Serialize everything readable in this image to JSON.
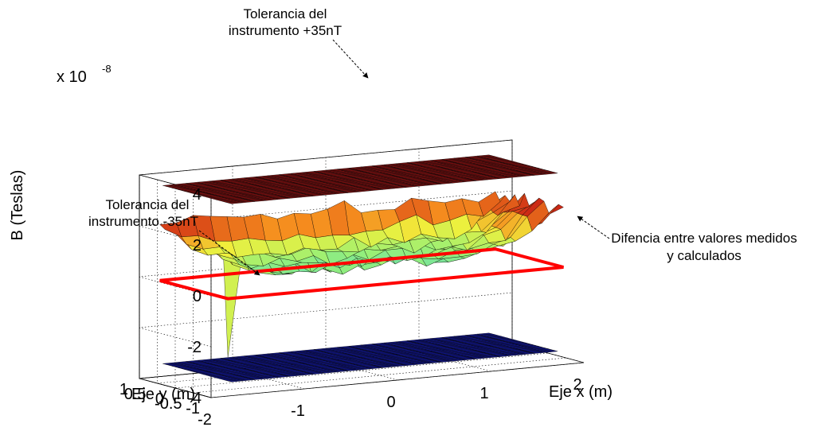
{
  "chart_data": {
    "type": "surface",
    "title": "",
    "ylabel_z": "B (Teslas)",
    "xlabel": "Eje x (m)",
    "ylabel": "Eje y (m)",
    "zscale_label": "x 10",
    "zscale_exp": "-8",
    "x_ticks": [
      "-2",
      "-1",
      "0",
      "1",
      "2"
    ],
    "y_ticks": [
      "-1",
      "-0.5",
      "0",
      "0.5",
      "1"
    ],
    "z_ticks": [
      "-4",
      "-2",
      "0",
      "2",
      "4"
    ],
    "xlim": [
      -2,
      2
    ],
    "ylim": [
      -1,
      1
    ],
    "zlim": [
      -4,
      4
    ],
    "zmult": 1e-08,
    "series": [
      {
        "name": "Tolerancia del instrumento +35nT",
        "value": 3.5,
        "color": "#7a1010"
      },
      {
        "name": "Tolerancia del instrumento -35nT",
        "value": -3.5,
        "color": "#101585"
      },
      {
        "name": "Difencia entre valores medidos y calculados",
        "center_value": 0.3,
        "edge_value": 2.0,
        "corner_front_value": -2.2
      }
    ],
    "annotations": [
      {
        "line1": "Tolerancia del",
        "line2": "instrumento +35nT"
      },
      {
        "line1": "Tolerancia del",
        "line2": "instrumento -35nT"
      },
      {
        "line1": "Difencia entre valores medidos",
        "line2": "y calculados"
      }
    ],
    "grid": true
  }
}
